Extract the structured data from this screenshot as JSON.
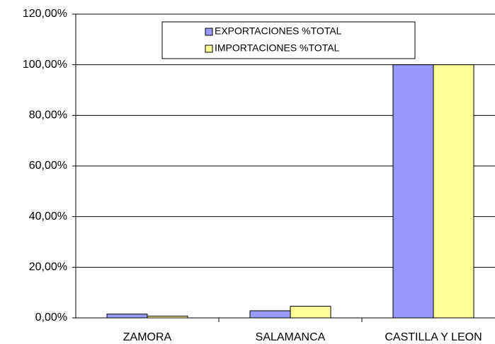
{
  "chart_data": {
    "type": "bar",
    "categories": [
      "ZAMORA",
      "SALAMANCA",
      "CASTILLA Y LEON"
    ],
    "series": [
      {
        "name": "EXPORTACIONES %TOTAL",
        "color": "#9999ff",
        "values": [
          1.5,
          2.8,
          100
        ]
      },
      {
        "name": "IMPORTACIONES %TOTAL",
        "color": "#ffff99",
        "values": [
          0.7,
          4.6,
          100
        ]
      }
    ],
    "ylim": [
      0,
      120
    ],
    "yticks": [
      {
        "value": 0,
        "label": "0,00%"
      },
      {
        "value": 20,
        "label": "20,00%"
      },
      {
        "value": 40,
        "label": "40,00%"
      },
      {
        "value": 60,
        "label": "60,00%"
      },
      {
        "value": 80,
        "label": "80,00%"
      },
      {
        "value": 100,
        "label": "100,00%"
      },
      {
        "value": 120,
        "label": "120,00%"
      }
    ],
    "grid": true,
    "legend": "top"
  }
}
